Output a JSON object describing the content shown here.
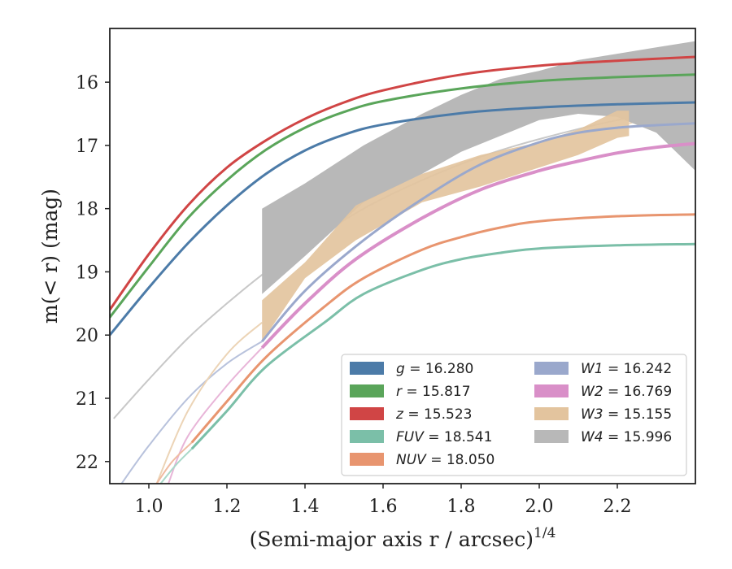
{
  "chart_data": {
    "type": "line",
    "xlabel": "(Semi-major axis r / arcsec)^1/4",
    "ylabel": "m(< r) (mag)",
    "xlim": [
      0.9,
      2.4
    ],
    "ylim": [
      22.35,
      15.15
    ],
    "y_inverted": true,
    "x_ticks": [
      1.0,
      1.2,
      1.4,
      1.6,
      1.8,
      2.0,
      2.2
    ],
    "y_ticks": [
      16,
      17,
      18,
      19,
      20,
      21,
      22
    ],
    "grid": false,
    "legend_position": "lower-right",
    "series": [
      {
        "name": "g = 16.280",
        "color": "#4c7ba8",
        "kind": "line",
        "width": 3,
        "x": [
          0.9,
          1.0,
          1.1,
          1.2,
          1.3,
          1.4,
          1.5,
          1.6,
          1.8,
          2.0,
          2.2,
          2.4
        ],
        "y": [
          20.0,
          19.25,
          18.55,
          17.95,
          17.45,
          17.08,
          16.83,
          16.67,
          16.49,
          16.4,
          16.35,
          16.32
        ]
      },
      {
        "name": "r = 15.817",
        "color": "#5aa55a",
        "kind": "line",
        "width": 3,
        "x": [
          0.9,
          1.0,
          1.1,
          1.2,
          1.3,
          1.4,
          1.5,
          1.6,
          1.8,
          2.0,
          2.2,
          2.4
        ],
        "y": [
          19.72,
          18.92,
          18.15,
          17.55,
          17.07,
          16.72,
          16.47,
          16.3,
          16.1,
          15.98,
          15.92,
          15.88
        ]
      },
      {
        "name": "z = 15.523",
        "color": "#d04545",
        "kind": "line",
        "width": 3,
        "x": [
          0.9,
          1.0,
          1.1,
          1.2,
          1.3,
          1.4,
          1.5,
          1.6,
          1.8,
          2.0,
          2.2,
          2.4
        ],
        "y": [
          19.6,
          18.72,
          17.95,
          17.35,
          16.92,
          16.58,
          16.32,
          16.13,
          15.88,
          15.74,
          15.66,
          15.6
        ]
      },
      {
        "name": "FUV = 18.541",
        "color": "#7bbfa8",
        "kind": "line",
        "width": 3,
        "x": [
          1.11,
          1.2,
          1.3,
          1.45,
          1.55,
          1.7,
          1.8,
          1.9,
          2.0,
          2.2,
          2.4
        ],
        "y": [
          21.8,
          21.2,
          20.5,
          19.8,
          19.35,
          18.97,
          18.8,
          18.7,
          18.63,
          18.58,
          18.56
        ]
      },
      {
        "name": "NUV = 18.050",
        "color": "#e8956f",
        "kind": "line",
        "width": 3,
        "x": [
          1.11,
          1.2,
          1.3,
          1.45,
          1.55,
          1.7,
          1.8,
          1.9,
          2.0,
          2.2,
          2.4
        ],
        "y": [
          21.7,
          21.05,
          20.35,
          19.55,
          19.1,
          18.65,
          18.45,
          18.3,
          18.2,
          18.12,
          18.09
        ]
      },
      {
        "name": "W1 = 16.242",
        "color": "#9aa8cc",
        "kind": "line",
        "width": 3,
        "x": [
          1.29,
          1.4,
          1.55,
          1.7,
          1.85,
          2.0,
          2.1,
          2.2,
          2.3,
          2.4
        ],
        "y": [
          20.1,
          19.3,
          18.5,
          17.85,
          17.3,
          16.95,
          16.8,
          16.72,
          16.68,
          16.65
        ]
      },
      {
        "name": "W2 = 16.769",
        "color": "#d98fc8",
        "kind": "line",
        "width": 4,
        "x": [
          1.29,
          1.4,
          1.53,
          1.7,
          1.85,
          2.0,
          2.1,
          2.2,
          2.3,
          2.4
        ],
        "y": [
          20.2,
          19.5,
          18.8,
          18.15,
          17.7,
          17.4,
          17.25,
          17.12,
          17.03,
          16.97
        ]
      },
      {
        "name": "W3 = 15.155",
        "color": "#e3c49e",
        "kind": "band",
        "x": [
          1.29,
          1.4,
          1.53,
          1.7,
          1.85,
          2.0,
          2.1,
          2.2,
          2.23
        ],
        "y_low": [
          20.1,
          19.1,
          18.5,
          17.9,
          17.65,
          17.35,
          17.15,
          16.88,
          16.85
        ],
        "y_high": [
          19.45,
          18.85,
          17.95,
          17.45,
          17.15,
          16.95,
          16.75,
          16.45,
          16.45
        ]
      },
      {
        "name": "W4 = 15.996",
        "color": "#b8b8b8",
        "kind": "band",
        "x": [
          1.29,
          1.4,
          1.55,
          1.7,
          1.8,
          1.9,
          2.0,
          2.1,
          2.2,
          2.3,
          2.4
        ],
        "y_low": [
          19.35,
          18.75,
          17.9,
          17.45,
          17.1,
          16.85,
          16.6,
          16.5,
          16.55,
          16.8,
          17.4
        ],
        "y_high": [
          18.0,
          17.6,
          17.0,
          16.5,
          16.2,
          15.95,
          15.82,
          15.65,
          15.55,
          15.45,
          15.35
        ]
      }
    ],
    "extrapolation_curves": [
      {
        "color": "#c8c8c8",
        "x": [
          0.91,
          1.0,
          1.1,
          1.2,
          1.3,
          1.4,
          1.55,
          1.7,
          1.85,
          2.0,
          2.2,
          2.4
        ],
        "y": [
          21.32,
          20.7,
          20.05,
          19.5,
          19.0,
          18.58,
          18.0,
          17.55,
          17.18,
          16.9,
          16.6,
          16.4
        ]
      },
      {
        "color": "#b8c2dc",
        "x": [
          0.93,
          1.0,
          1.1,
          1.2,
          1.29
        ],
        "y": [
          22.35,
          21.75,
          21.0,
          20.45,
          20.1
        ]
      },
      {
        "color": "#e8b5d8",
        "x": [
          1.05,
          1.1,
          1.2,
          1.29
        ],
        "y": [
          22.35,
          21.6,
          20.8,
          20.2
        ]
      },
      {
        "color": "#ecd4b6",
        "x": [
          1.02,
          1.1,
          1.2,
          1.29
        ],
        "y": [
          22.35,
          21.2,
          20.3,
          19.8
        ]
      },
      {
        "color": "#f0bca2",
        "x": [
          1.02,
          1.06,
          1.11
        ],
        "y": [
          22.35,
          22.0,
          21.7
        ]
      },
      {
        "color": "#a9d8c8",
        "x": [
          1.03,
          1.07,
          1.11
        ],
        "y": [
          22.35,
          22.05,
          21.8
        ]
      },
      {
        "color": "#ecd4b6",
        "x": [
          2.23,
          2.3,
          2.4
        ],
        "y": [
          16.65,
          16.55,
          16.45
        ]
      }
    ]
  }
}
